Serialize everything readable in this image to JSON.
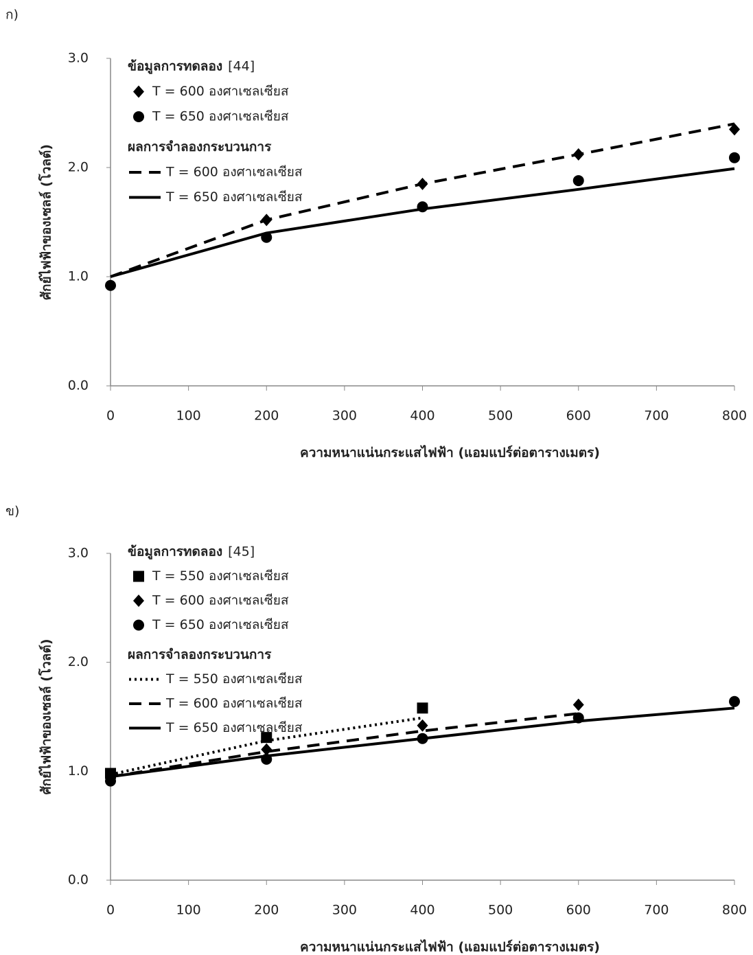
{
  "chart_data": [
    {
      "type": "line",
      "panel": "ก)",
      "x_label": "ความหนาแน่นกระแสไฟฟ้า (แอมแปร์ต่อตารางเมตร)",
      "y_label": "ศักย์ไฟฟ้าของเซลล์ (โวลต์)",
      "xlim": [
        0,
        800
      ],
      "xticks": [
        0,
        100,
        200,
        300,
        400,
        500,
        600,
        700,
        800
      ],
      "ylim": [
        0,
        3
      ],
      "yticks": [
        {
          "value": 0,
          "label": "0.0"
        },
        {
          "value": 1,
          "label": "1.0"
        },
        {
          "value": 2,
          "label": "2.0"
        },
        {
          "value": 3,
          "label": "3.0"
        }
      ],
      "experiment": {
        "title": "ข้อมูลการทดลอง",
        "citation": "[44]",
        "series": [
          {
            "name": "T = 600 องศาเซลเซียส",
            "marker": "diamond",
            "color": "#000000",
            "x": [
              200,
              400,
              600,
              800
            ],
            "values": [
              1.52,
              1.85,
              2.12,
              2.35
            ]
          },
          {
            "name": "T = 650 องศาเซลเซียส",
            "marker": "circle",
            "color": "#000000",
            "x": [
              0,
              200,
              400,
              600,
              800
            ],
            "values": [
              0.92,
              1.36,
              1.64,
              1.88,
              2.09
            ]
          }
        ]
      },
      "model": {
        "title": "ผลการจำลองกระบวนการ",
        "series": [
          {
            "name": "T = 600 องศาเซลเซียส",
            "dash": "dashed",
            "color": "#000000",
            "x": [
              0,
              200,
              400,
              600,
              800
            ],
            "values": [
              1.0,
              1.52,
              1.85,
              2.12,
              2.4
            ]
          },
          {
            "name": "T = 650 องศาเซลเซียส",
            "dash": "solid",
            "color": "#000000",
            "x": [
              0,
              200,
              400,
              600,
              800
            ],
            "values": [
              1.0,
              1.4,
              1.62,
              1.8,
              1.99
            ]
          }
        ]
      }
    },
    {
      "type": "line",
      "panel": "ข)",
      "x_label": "ความหนาแน่นกระแสไฟฟ้า (แอมแปร์ต่อตารางเมตร)",
      "y_label": "ศักย์ไฟฟ้าของเซลล์ (โวลต์)",
      "xlim": [
        0,
        800
      ],
      "xticks": [
        0,
        100,
        200,
        300,
        400,
        500,
        600,
        700,
        800
      ],
      "ylim": [
        0,
        3
      ],
      "yticks": [
        {
          "value": 0,
          "label": "0.0"
        },
        {
          "value": 1,
          "label": "1.0"
        },
        {
          "value": 2,
          "label": "2.0"
        },
        {
          "value": 3,
          "label": "3.0"
        }
      ],
      "experiment": {
        "title": "ข้อมูลการทดลอง",
        "citation": "[45]",
        "series": [
          {
            "name": "T = 550 องศาเซลเซียส",
            "marker": "square",
            "color": "#000000",
            "x": [
              0,
              200,
              400
            ],
            "values": [
              0.98,
              1.31,
              1.58
            ]
          },
          {
            "name": "T = 600 องศาเซลเซียส",
            "marker": "diamond",
            "color": "#000000",
            "x": [
              0,
              200,
              400,
              600
            ],
            "values": [
              0.95,
              1.2,
              1.42,
              1.61
            ]
          },
          {
            "name": "T = 650 องศาเซลเซียส",
            "marker": "circle",
            "color": "#000000",
            "x": [
              0,
              200,
              400,
              600,
              800
            ],
            "values": [
              0.91,
              1.11,
              1.3,
              1.49,
              1.64
            ]
          }
        ]
      },
      "model": {
        "title": "ผลการจำลองกระบวนการ",
        "series": [
          {
            "name": "T = 550 องศาเซลเซียส",
            "dash": "dotted",
            "color": "#000000",
            "x": [
              0,
              200,
              400
            ],
            "values": [
              0.97,
              1.28,
              1.49
            ]
          },
          {
            "name": "T = 600 องศาเซลเซียส",
            "dash": "dashed",
            "color": "#000000",
            "x": [
              0,
              200,
              400,
              600
            ],
            "values": [
              0.95,
              1.18,
              1.37,
              1.53
            ]
          },
          {
            "name": "T = 650 องศาเซลเซียส",
            "dash": "solid",
            "color": "#000000",
            "x": [
              0,
              200,
              400,
              600,
              800
            ],
            "values": [
              0.95,
              1.14,
              1.3,
              1.46,
              1.58
            ]
          }
        ]
      }
    }
  ]
}
